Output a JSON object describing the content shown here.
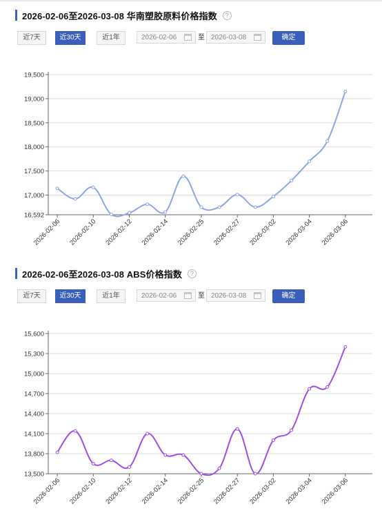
{
  "panels": [
    {
      "title": "2026-02-06至2026-03-08 华南塑胶原料价格指数",
      "help_icon": "question-circle-icon",
      "buttons": {
        "last7": "近7天",
        "last30": "近30天",
        "last1y": "近1年",
        "active": "近30天"
      },
      "date_from": "2026-02-06",
      "to_label": "至",
      "date_to": "2026-03-08",
      "confirm": "确定",
      "chart_data": {
        "type": "line",
        "x": [
          "2026-02-06",
          "2026-02-09",
          "2026-02-10",
          "2026-02-11",
          "2026-02-12",
          "2026-02-13",
          "2026-02-14",
          "2026-02-24",
          "2026-02-25",
          "2026-02-26",
          "2026-02-27",
          "2026-02-28",
          "2026-03-02",
          "2026-03-03",
          "2026-03-04",
          "2026-03-05",
          "2026-03-06",
          "2026-03-07"
        ],
        "xticks": [
          "2026-02-06",
          "2026-02-10",
          "2026-02-12",
          "2026-02-14",
          "2026-02-25",
          "2026-02-27",
          "2026-03-02",
          "2026-03-04",
          "2026-03-06"
        ],
        "series": [
          {
            "values": [
              17140,
              16920,
              17160,
              16600,
              16630,
              16810,
              16650,
              17390,
              16750,
              16750,
              17010,
              16750,
              16970,
              17300,
              17700,
              18120,
              19150,
              null
            ]
          }
        ],
        "yticks": [
          16592,
          17000,
          17500,
          18000,
          18500,
          19000,
          19500
        ],
        "ylim": [
          16592,
          19500
        ],
        "color": "#8aa6e6",
        "grid": true
      }
    },
    {
      "title": "2026-02-06至2026-03-08 ABS价格指数",
      "help_icon": "question-circle-icon",
      "buttons": {
        "last7": "近7天",
        "last30": "近30天",
        "last1y": "近1年",
        "active": "近30天"
      },
      "date_from": "2026-02-06",
      "to_label": "至",
      "date_to": "2026-03-08",
      "confirm": "确定",
      "chart_data": {
        "type": "line",
        "x": [
          "2026-02-06",
          "2026-02-09",
          "2026-02-10",
          "2026-02-11",
          "2026-02-12",
          "2026-02-13",
          "2026-02-14",
          "2026-02-24",
          "2026-02-25",
          "2026-02-26",
          "2026-02-27",
          "2026-02-28",
          "2026-03-02",
          "2026-03-03",
          "2026-03-04",
          "2026-03-05",
          "2026-03-06",
          "2026-03-07"
        ],
        "xticks": [
          "2026-02-06",
          "2026-02-10",
          "2026-02-12",
          "2026-02-14",
          "2026-02-25",
          "2026-02-27",
          "2026-03-02",
          "2026-03-04",
          "2026-03-06"
        ],
        "series": [
          {
            "values": [
              13820,
              14140,
              13650,
              13700,
              13600,
              14100,
              13780,
              13780,
              13500,
              13580,
              14170,
              13500,
              14000,
              14150,
              14770,
              14800,
              15400,
              null
            ]
          }
        ],
        "yticks": [
          13500,
          13800,
          14100,
          14400,
          14700,
          15000,
          15300,
          15600
        ],
        "ylim": [
          13500,
          15600
        ],
        "color": "#a04de3",
        "grid": true
      }
    }
  ]
}
